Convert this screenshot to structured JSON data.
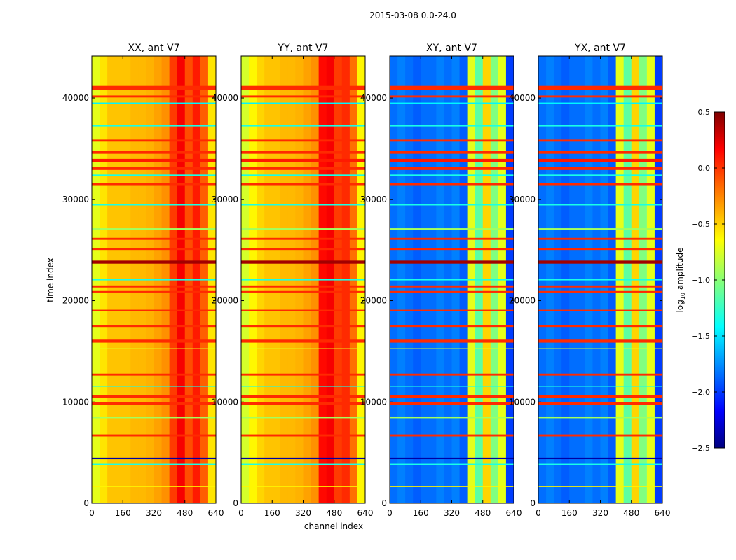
{
  "chart_data": {
    "type": "heatmap",
    "title": "2015-03-08 0.0-24.0",
    "xlabel": "channel index",
    "ylabel": "time index",
    "xlim": [
      0,
      640
    ],
    "ylim": [
      0,
      44150
    ],
    "xticks": [
      "0",
      "160",
      "320",
      "480",
      "640"
    ],
    "xtick_values": [
      0,
      160,
      320,
      480,
      640
    ],
    "yticks": [
      "0",
      "10000",
      "20000",
      "30000",
      "40000"
    ],
    "ytick_values": [
      0,
      10000,
      20000,
      30000,
      40000
    ],
    "channel_bin_width": 40,
    "colorbar": {
      "label_main": "log",
      "label_sub": "10",
      "label_rest": " amplitude",
      "range": [
        -2.5,
        0.5
      ],
      "ticks": [
        "0.5",
        "0.0",
        "−0.5",
        "−1.0",
        "−1.5",
        "−2.0",
        "−2.5"
      ],
      "tick_values": [
        0.5,
        0.0,
        -0.5,
        -1.0,
        -1.5,
        -2.0,
        -2.5
      ],
      "colormap": "jet"
    },
    "panels": [
      {
        "title": "XX, ant V7",
        "column_profile": [
          -0.7,
          -0.55,
          -0.45,
          -0.45,
          -0.45,
          -0.42,
          -0.42,
          -0.4,
          -0.35,
          -0.3,
          -0.05,
          0.15,
          -0.1,
          0.05,
          -0.15,
          -0.55
        ]
      },
      {
        "title": "YY, ant V7",
        "column_profile": [
          -0.75,
          -0.6,
          -0.5,
          -0.45,
          -0.45,
          -0.42,
          -0.42,
          -0.4,
          -0.35,
          -0.3,
          0.1,
          0.15,
          -0.05,
          0.0,
          -0.2,
          -0.6
        ]
      },
      {
        "title": "XY, ant V7",
        "column_profile": [
          -1.8,
          -1.75,
          -1.8,
          -1.85,
          -1.8,
          -1.8,
          -1.75,
          -1.8,
          -1.75,
          -1.85,
          -0.7,
          -1.1,
          -0.5,
          -1.0,
          -0.7,
          -1.95
        ]
      },
      {
        "title": "YX, ant V7",
        "column_profile": [
          -1.8,
          -1.75,
          -1.8,
          -1.85,
          -1.8,
          -1.8,
          -1.75,
          -1.8,
          -1.75,
          -1.85,
          -0.7,
          -1.1,
          -0.5,
          -1.0,
          -0.7,
          -1.95
        ]
      }
    ],
    "time_bands": [
      {
        "t": [
          40800,
          41200
        ],
        "value": 0.0
      },
      {
        "t": [
          40050,
          40250
        ],
        "value": 0.0
      },
      {
        "t": [
          39400,
          39550
        ],
        "value": -1.4
      },
      {
        "t": [
          37200,
          37350
        ],
        "value": -1.3
      },
      {
        "t": [
          35700,
          35900
        ],
        "value": 0.0
      },
      {
        "t": [
          34500,
          34800
        ],
        "value": 0.0
      },
      {
        "t": [
          33700,
          34000
        ],
        "value": 0.05
      },
      {
        "t": [
          32900,
          33200
        ],
        "value": 0.0
      },
      {
        "t": [
          32300,
          32450
        ],
        "value": -1.3
      },
      {
        "t": [
          31400,
          31600
        ],
        "value": 0.0
      },
      {
        "t": [
          29400,
          29550
        ],
        "value": -1.3
      },
      {
        "t": [
          27000,
          27150
        ],
        "value": -0.9
      },
      {
        "t": [
          26000,
          26200
        ],
        "value": 0.0
      },
      {
        "t": [
          25000,
          25150
        ],
        "value": 0.0
      },
      {
        "t": [
          23650,
          23950
        ],
        "value": 0.4
      },
      {
        "t": [
          22000,
          22150
        ],
        "value": -1.3
      },
      {
        "t": [
          21300,
          21500
        ],
        "value": 0.0
      },
      {
        "t": [
          20800,
          20950
        ],
        "value": 0.0
      },
      {
        "t": [
          19000,
          19100
        ],
        "value": 0.0
      },
      {
        "t": [
          17400,
          17550
        ],
        "value": 0.0
      },
      {
        "t": [
          15850,
          16150
        ],
        "value": 0.0
      },
      {
        "t": [
          15200,
          15300
        ],
        "value": -0.7
      },
      {
        "t": [
          12600,
          12800
        ],
        "value": 0.0
      },
      {
        "t": [
          11500,
          11600
        ],
        "value": -1.3
      },
      {
        "t": [
          10400,
          10650
        ],
        "value": 0.0
      },
      {
        "t": [
          9700,
          9950
        ],
        "value": 0.0
      },
      {
        "t": [
          8400,
          8500
        ],
        "value": -0.9
      },
      {
        "t": [
          6600,
          6800
        ],
        "value": 0.0
      },
      {
        "t": [
          4350,
          4500
        ],
        "value": -2.4
      },
      {
        "t": [
          3800,
          3900
        ],
        "value": -1.3
      },
      {
        "t": [
          1600,
          1700
        ],
        "value": -0.6
      }
    ]
  }
}
